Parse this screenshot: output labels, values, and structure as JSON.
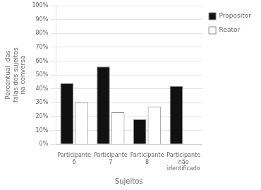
{
  "chart_data": {
    "type": "bar",
    "categories": [
      "Participante\n6",
      "Participante\n7",
      "Participante\n8",
      "Participante\nnão\nidentificado"
    ],
    "series": [
      {
        "name": "Propositor",
        "color": "#111111",
        "values": [
          44,
          56,
          18,
          42
        ]
      },
      {
        "name": "Reator",
        "color": "#ffffff",
        "values": [
          30,
          23,
          27,
          0
        ]
      }
    ],
    "xlabel": "Sujeitos",
    "ylabel": "Percentual  das\nfalas dos sujeitos\nna conversa",
    "ylim": [
      0,
      100
    ],
    "yticks": [
      {
        "value": 0,
        "label": "0%"
      },
      {
        "value": 10,
        "label": "10%"
      },
      {
        "value": 20,
        "label": "20%"
      },
      {
        "value": 30,
        "label": "30%"
      },
      {
        "value": 40,
        "label": "40%"
      },
      {
        "value": 50,
        "label": "50%"
      },
      {
        "value": 60,
        "label": "60%"
      },
      {
        "value": 70,
        "label": "70%"
      },
      {
        "value": 80,
        "label": "80%"
      },
      {
        "value": 90,
        "label": "90%"
      },
      {
        "value": 100,
        "label": "100%"
      }
    ],
    "grid": true,
    "legend": "right"
  }
}
